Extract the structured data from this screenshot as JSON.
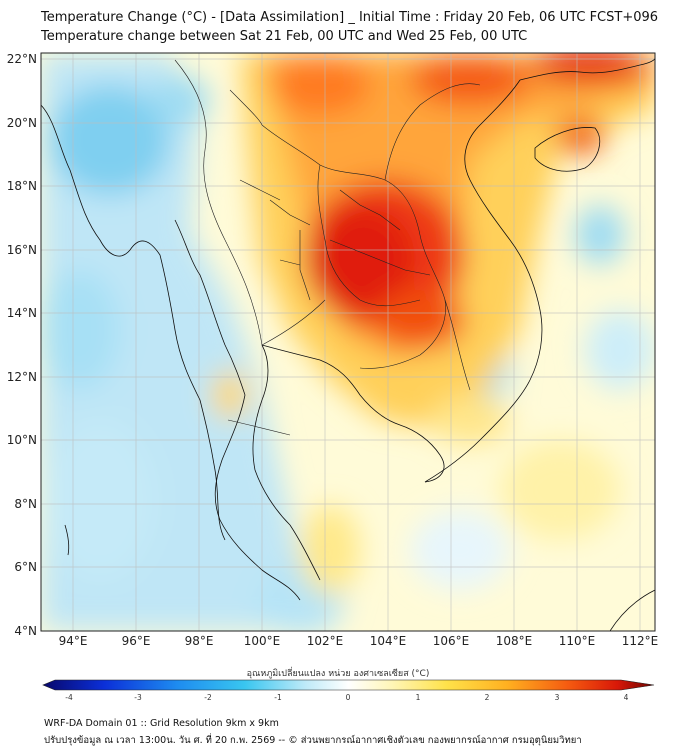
{
  "header": {
    "title": "Temperature Change (°C) - [Data Assimilation] _ Initial Time : Friday 20 Feb, 06 UTC FCST+096",
    "subtitle": "Temperature change between Sat 21 Feb, 00 UTC and Wed 25 Feb, 00 UTC"
  },
  "map": {
    "lat_labels": [
      "22°N",
      "20°N",
      "18°N",
      "16°N",
      "14°N",
      "12°N",
      "10°N",
      "8°N",
      "6°N",
      "4°N"
    ],
    "lat_values": [
      22,
      20,
      18,
      16,
      14,
      12,
      10,
      8,
      6,
      4
    ],
    "lon_labels": [
      "94°E",
      "96°E",
      "98°E",
      "100°E",
      "102°E",
      "104°E",
      "106°E",
      "108°E",
      "110°E",
      "112°E"
    ],
    "lon_values": [
      94,
      96,
      98,
      100,
      102,
      104,
      106,
      108,
      110,
      112
    ],
    "lon_range": [
      93,
      112.5
    ],
    "lat_range": [
      4,
      22.2
    ],
    "gridlines": true,
    "colors": {
      "strong_warm": "#e31a1c",
      "warm": "#fd8d3c",
      "mild_warm": "#fed976",
      "neutral": "#ffffcc",
      "mild_cool": "#c7e9f4",
      "cool": "#7fcdee",
      "strong_cool": "#2c7fb8",
      "border": "#000000"
    }
  },
  "colorbar": {
    "title": "อุณหภูมิเปลี่ยนแปลง หน่วย องศาเซลเซียส (°C)",
    "ticks": [
      "-4",
      "-3",
      "-2",
      "-1",
      "0",
      "1",
      "2",
      "3",
      "4"
    ],
    "tick_values": [
      -4,
      -3,
      -2,
      -1,
      0,
      1,
      2,
      3,
      4
    ]
  },
  "footer": {
    "line1": "WRF-DA Domain 01 :: Grid Resolution 9km x 9km",
    "line2": "ปรับปรุงข้อมูล ณ เวลา 13:00น. วัน ศ. ที่ 20 ก.พ. 2569 -- © ส่วนพยากรณ์อากาศเชิงตัวเลข กองพยากรณ์อากาศ กรมอุตุนิยมวิทยา"
  }
}
